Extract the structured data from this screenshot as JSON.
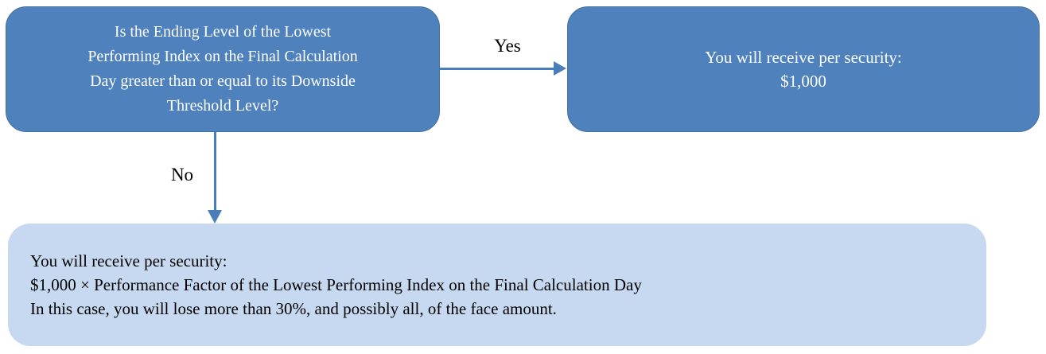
{
  "colors": {
    "box-blue": "#4F81BD",
    "box-blue-border": "#44729F",
    "box-light-blue": "#C7D9F0",
    "arrow-blue": "#4A7EBA",
    "text-on-blue": "#FFFFFF",
    "text-dark": "#000000"
  },
  "decision_box": {
    "lines": [
      "Is the Ending Level of the Lowest",
      "Performing Index on the Final Calculation",
      "Day greater than or equal to its Downside",
      "Threshold Level?"
    ]
  },
  "yes_branch": {
    "label": "Yes"
  },
  "no_branch": {
    "label": "No"
  },
  "yes_outcome_box": {
    "lines": [
      "You will receive per security:",
      "$1,000"
    ]
  },
  "no_outcome_box": {
    "lines": [
      "You will receive per security:",
      "$1,000 × Performance Factor of the Lowest Performing Index on the Final Calculation Day",
      "In this case, you will lose more than 30%, and possibly all, of the face amount."
    ]
  }
}
